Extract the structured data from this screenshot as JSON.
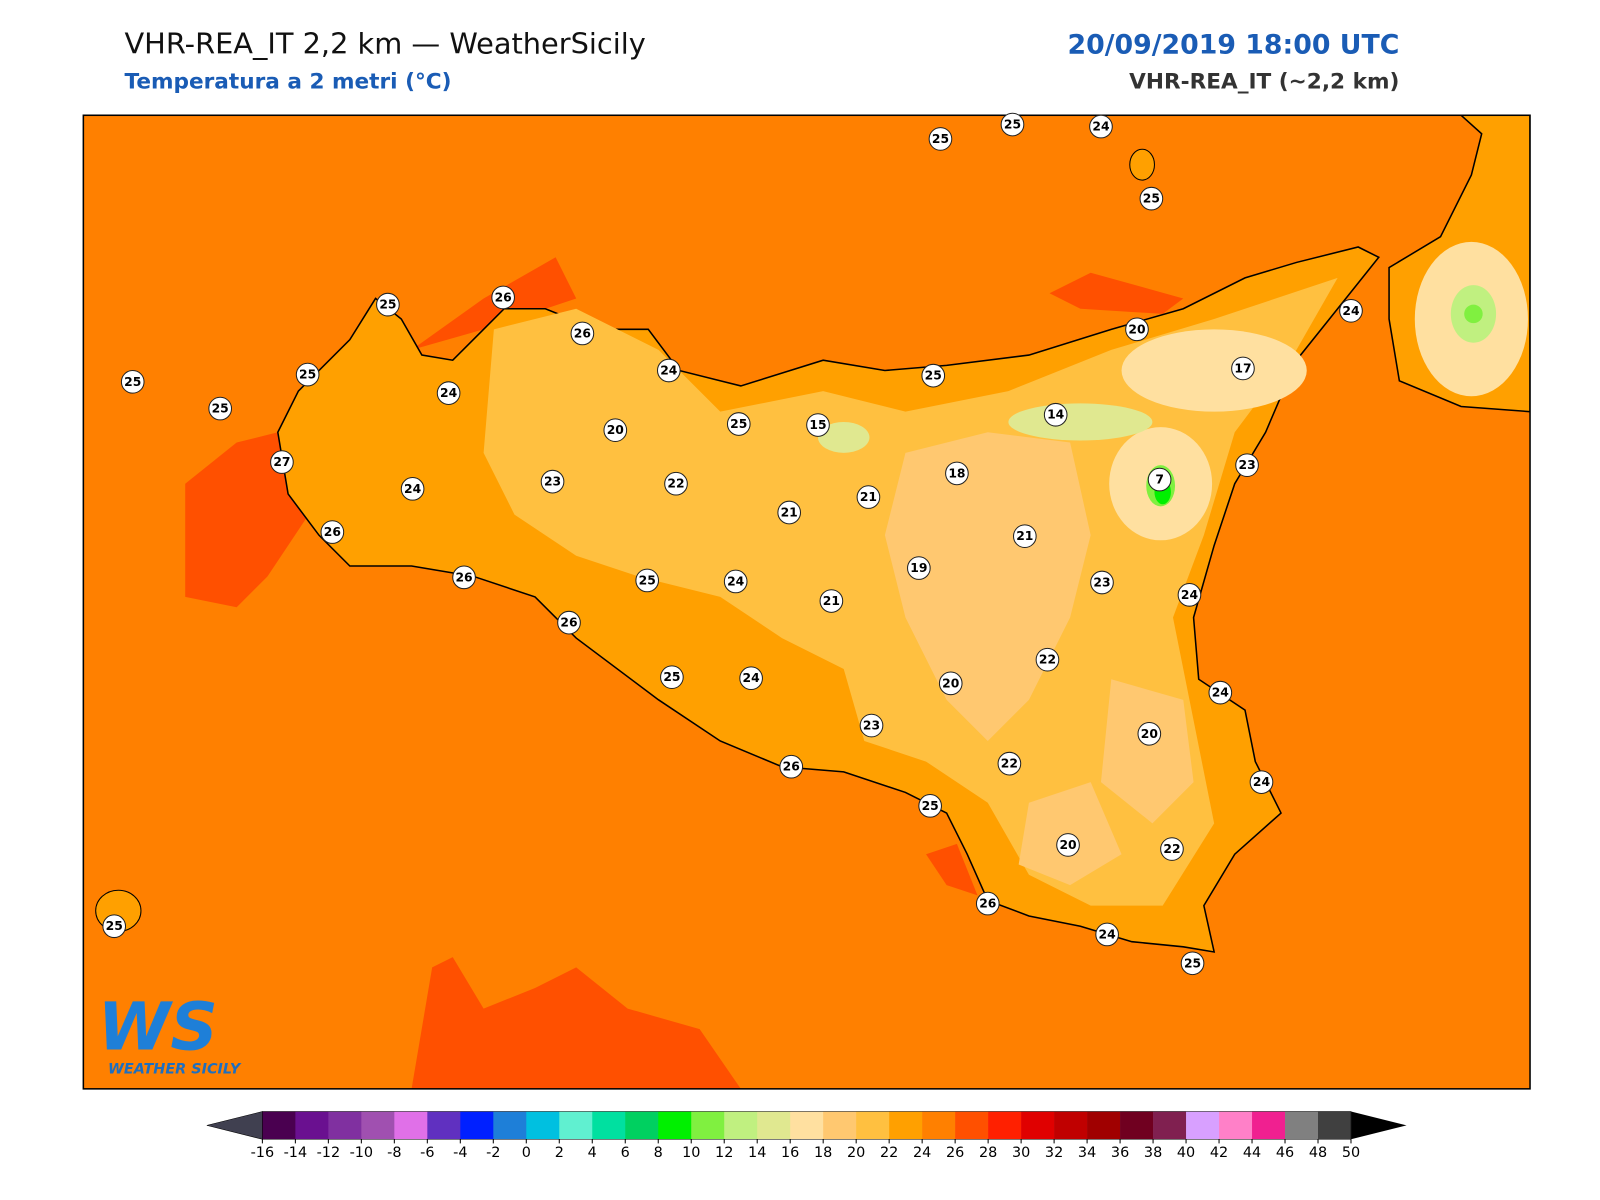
{
  "header": {
    "title": "VHR-REA_IT 2,2 km — WeatherSicily",
    "subtitle": "Temperatura a 2 metri (°C)",
    "date": "20/09/2019 18:00 UTC",
    "model": "VHR-REA_IT (~2,2 km)"
  },
  "map": {
    "stations": [
      25,
      26,
      26,
      25,
      25,
      25,
      24,
      24,
      27,
      24,
      26,
      20,
      25,
      15,
      23,
      22,
      21,
      21,
      25,
      18,
      14,
      20,
      17,
      24,
      7,
      23,
      21,
      19,
      23,
      24,
      26,
      25,
      24,
      21,
      26,
      22,
      25,
      24,
      20,
      24,
      20,
      23,
      22,
      26,
      24,
      25,
      20,
      22,
      26,
      24,
      25,
      25,
      25,
      25,
      24,
      25
    ]
  },
  "colorbar": {
    "ticks": [
      -16,
      -14,
      -12,
      -10,
      -8,
      -6,
      -4,
      -2,
      0,
      2,
      4,
      6,
      8,
      10,
      12,
      14,
      16,
      18,
      20,
      22,
      24,
      26,
      28,
      30,
      32,
      34,
      36,
      38,
      40,
      42,
      44,
      46,
      48,
      50
    ],
    "colors": [
      "#4a0050",
      "#6a1090",
      "#8030a0",
      "#a050b0",
      "#e070e8",
      "#6030c0",
      "#0020ff",
      "#1e7fd8",
      "#00c0e0",
      "#60f0d0",
      "#00e0a0",
      "#00d060",
      "#00f000",
      "#80f040",
      "#c0f080",
      "#e0e890",
      "#ffe0a0",
      "#ffc870",
      "#ffc040",
      "#ffa000",
      "#ff8000",
      "#ff5000",
      "#ff2000",
      "#e00000",
      "#c00000",
      "#a00000",
      "#700020",
      "#802050",
      "#d8a0ff",
      "#ff80c8",
      "#f02090",
      "#808080",
      "#404040"
    ],
    "under_color": "#404050",
    "over_color": "#000000"
  },
  "logo": {
    "mark": "WS",
    "name": "WEATHER SICILY"
  }
}
